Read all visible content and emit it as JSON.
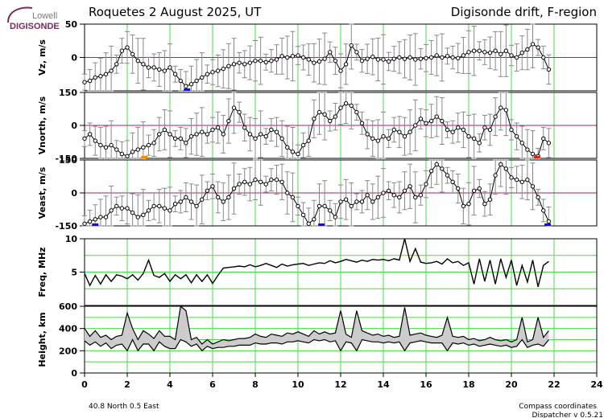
{
  "logo": {
    "top": "Lowell",
    "bottom": "DIGISONDE"
  },
  "header": {
    "left": "Roquetes  2 August 2025, UT",
    "right": "Digisonde drift, F-region"
  },
  "footer": {
    "location": "40.8 North   0.5 East",
    "coords": "Compass coordinates",
    "version": "Dispatcher v 0.5.21"
  },
  "colors": {
    "grid": "#44dd44",
    "zero_line": "#aa2266",
    "error_bar": "#888888",
    "blue_marker": "#1111cc",
    "red_marker": "#dd2200",
    "orange_marker": "#ff8800"
  },
  "chart_data": [
    {
      "type": "scatter",
      "ylabel": "Vz, m/s",
      "ylim": [
        -50,
        50
      ],
      "yticks": [
        "50",
        "0"
      ],
      "x": [
        0,
        0.25,
        0.5,
        0.75,
        1,
        1.25,
        1.5,
        1.75,
        2,
        2.25,
        2.5,
        2.75,
        3,
        3.25,
        3.5,
        3.75,
        4,
        4.25,
        4.5,
        4.75,
        5,
        5.25,
        5.5,
        5.75,
        6,
        6.25,
        6.5,
        6.75,
        7,
        7.25,
        7.5,
        7.75,
        8,
        8.25,
        8.5,
        8.75,
        9,
        9.25,
        9.5,
        9.75,
        10,
        10.25,
        10.5,
        10.75,
        11,
        11.25,
        11.5,
        11.75,
        12,
        12.25,
        12.5,
        12.75,
        13,
        13.25,
        13.5,
        13.75,
        14,
        14.25,
        14.5,
        14.75,
        15,
        15.25,
        15.5,
        15.75,
        16,
        16.25,
        16.5,
        16.75,
        17,
        17.25,
        17.5,
        17.75,
        18,
        18.25,
        18.5,
        18.75,
        19,
        19.25,
        19.5,
        19.75,
        20,
        20.25,
        20.5,
        20.75,
        21,
        21.25,
        21.5,
        21.75
      ],
      "values": [
        -37,
        -35,
        -30,
        -28,
        -25,
        -20,
        -10,
        10,
        15,
        5,
        -5,
        -10,
        -15,
        -15,
        -18,
        -20,
        -15,
        -25,
        -35,
        -43,
        -40,
        -35,
        -30,
        -25,
        -22,
        -20,
        -17,
        -13,
        -10,
        -8,
        -10,
        -8,
        -5,
        -5,
        -7,
        -5,
        -3,
        2,
        0,
        2,
        3,
        0,
        -3,
        -8,
        -6,
        -2,
        8,
        -5,
        -20,
        -10,
        18,
        8,
        -5,
        -2,
        1,
        -3,
        -3,
        -6,
        -2,
        0,
        -2,
        0,
        -3,
        -2,
        -1,
        0,
        3,
        0,
        2,
        0,
        -1,
        3,
        8,
        10,
        10,
        8,
        7,
        10,
        5,
        10,
        3,
        0,
        7,
        12,
        20,
        15,
        0,
        -18
      ],
      "markers": [
        {
          "x": 4.8,
          "color": "blue"
        }
      ]
    },
    {
      "type": "scatter",
      "ylabel": "Vnorth, m/s",
      "ylim": [
        -150,
        150
      ],
      "yticks": [
        "150",
        "0",
        "-150"
      ],
      "x": [
        0,
        0.25,
        0.5,
        0.75,
        1,
        1.25,
        1.5,
        1.75,
        2,
        2.25,
        2.5,
        2.75,
        3,
        3.25,
        3.5,
        3.75,
        4,
        4.25,
        4.5,
        4.75,
        5,
        5.25,
        5.5,
        5.75,
        6,
        6.25,
        6.5,
        6.75,
        7,
        7.25,
        7.5,
        7.75,
        8,
        8.25,
        8.5,
        8.75,
        9,
        9.25,
        9.5,
        9.75,
        10,
        10.25,
        10.5,
        10.75,
        11,
        11.25,
        11.5,
        11.75,
        12,
        12.25,
        12.5,
        12.75,
        13,
        13.25,
        13.5,
        13.75,
        14,
        14.25,
        14.5,
        14.75,
        15,
        15.25,
        15.5,
        15.75,
        16,
        16.25,
        16.5,
        16.75,
        17,
        17.25,
        17.5,
        17.75,
        18,
        18.25,
        18.5,
        18.75,
        19,
        19.25,
        19.5,
        19.75,
        20,
        20.25,
        20.5,
        20.75,
        21,
        21.25,
        21.5,
        21.75
      ],
      "values": [
        -60,
        -40,
        -70,
        -90,
        -100,
        -90,
        -110,
        -130,
        -140,
        -120,
        -110,
        -100,
        -90,
        -80,
        -40,
        -20,
        -40,
        -60,
        -60,
        -80,
        -50,
        -40,
        -30,
        -40,
        -20,
        -10,
        -40,
        20,
        80,
        60,
        -10,
        -40,
        -60,
        -40,
        -50,
        -20,
        -30,
        -60,
        -100,
        -120,
        -130,
        -90,
        -70,
        30,
        60,
        50,
        20,
        40,
        80,
        100,
        90,
        60,
        10,
        -40,
        -60,
        -70,
        -50,
        -60,
        -20,
        -30,
        -50,
        -30,
        0,
        30,
        10,
        20,
        40,
        20,
        -20,
        -30,
        -10,
        -20,
        -50,
        -60,
        -80,
        -10,
        -20,
        40,
        80,
        70,
        -20,
        -50,
        -80,
        -110,
        -130,
        -140,
        -60,
        -80
      ],
      "markers": [
        {
          "x": 2.8,
          "color": "orange"
        },
        {
          "x": 21.2,
          "color": "red"
        }
      ]
    },
    {
      "type": "scatter",
      "ylabel": "Veast, m/s",
      "ylim": [
        -150,
        150
      ],
      "yticks": [
        "150",
        "0",
        "-150"
      ],
      "x": [
        0,
        0.25,
        0.5,
        0.75,
        1,
        1.25,
        1.5,
        1.75,
        2,
        2.25,
        2.5,
        2.75,
        3,
        3.25,
        3.5,
        3.75,
        4,
        4.25,
        4.5,
        4.75,
        5,
        5.25,
        5.5,
        5.75,
        6,
        6.25,
        6.5,
        6.75,
        7,
        7.25,
        7.5,
        7.75,
        8,
        8.25,
        8.5,
        8.75,
        9,
        9.25,
        9.5,
        9.75,
        10,
        10.25,
        10.5,
        10.75,
        11,
        11.25,
        11.5,
        11.75,
        12,
        12.25,
        12.5,
        12.75,
        13,
        13.25,
        13.5,
        13.75,
        14,
        14.25,
        14.5,
        14.75,
        15,
        15.25,
        15.5,
        15.75,
        16,
        16.25,
        16.5,
        16.75,
        17,
        17.25,
        17.5,
        17.75,
        18,
        18.25,
        18.5,
        18.75,
        19,
        19.25,
        19.5,
        19.75,
        20,
        20.25,
        20.5,
        20.75,
        21,
        21.25,
        21.5,
        21.75
      ],
      "values": [
        -140,
        -130,
        -120,
        -110,
        -110,
        -80,
        -60,
        -70,
        -70,
        -90,
        -110,
        -100,
        -80,
        -60,
        -60,
        -70,
        -80,
        -50,
        -40,
        -20,
        -40,
        -60,
        -30,
        10,
        30,
        -20,
        -40,
        -20,
        20,
        40,
        50,
        40,
        60,
        50,
        40,
        60,
        60,
        50,
        0,
        -20,
        -60,
        -100,
        -140,
        -120,
        -60,
        -60,
        -80,
        -110,
        -40,
        -30,
        -60,
        -40,
        -40,
        -10,
        -40,
        -20,
        0,
        10,
        -10,
        -20,
        10,
        30,
        -20,
        -10,
        40,
        100,
        130,
        110,
        80,
        50,
        20,
        -60,
        -50,
        10,
        20,
        -50,
        -30,
        80,
        130,
        110,
        70,
        60,
        50,
        60,
        30,
        -20,
        -80,
        -130
      ],
      "markers": [
        {
          "x": 0.5,
          "color": "blue"
        },
        {
          "x": 11.1,
          "color": "blue"
        },
        {
          "x": 21.7,
          "color": "blue"
        }
      ]
    },
    {
      "type": "line",
      "ylabel": "Freq, MHz",
      "ylim": [
        0,
        10
      ],
      "yticks": [
        "10",
        "5"
      ],
      "x": [
        0,
        0.25,
        0.5,
        0.75,
        1,
        1.25,
        1.5,
        1.75,
        2,
        2.25,
        2.5,
        2.75,
        3,
        3.25,
        3.5,
        3.75,
        4,
        4.25,
        4.5,
        4.75,
        5,
        5.25,
        5.5,
        5.75,
        6,
        6.25,
        6.5,
        6.75,
        7,
        7.25,
        7.5,
        7.75,
        8,
        8.25,
        8.5,
        8.75,
        9,
        9.25,
        9.5,
        9.75,
        10,
        10.25,
        10.5,
        10.75,
        11,
        11.25,
        11.5,
        11.75,
        12,
        12.25,
        12.5,
        12.75,
        13,
        13.25,
        13.5,
        13.75,
        14,
        14.25,
        14.5,
        14.75,
        15,
        15.25,
        15.5,
        15.75,
        16,
        16.25,
        16.5,
        16.75,
        17,
        17.25,
        17.5,
        17.75,
        18,
        18.25,
        18.5,
        18.75,
        19,
        19.25,
        19.5,
        19.75,
        20,
        20.25,
        20.5,
        20.75,
        21,
        21.25,
        21.5,
        21.75
      ],
      "values": [
        4.8,
        3.0,
        4.5,
        3.2,
        4.6,
        3.6,
        4.6,
        4.4,
        4.0,
        4.6,
        3.8,
        4.8,
        6.8,
        4.5,
        4.2,
        4.8,
        3.6,
        4.6,
        4.0,
        4.6,
        3.4,
        4.6,
        3.6,
        4.6,
        3.3,
        4.5,
        5.6,
        5.7,
        5.8,
        5.9,
        5.8,
        6.1,
        5.8,
        6.0,
        6.3,
        6.0,
        5.7,
        6.2,
        5.9,
        6.1,
        6.2,
        6.3,
        6.0,
        6.2,
        6.4,
        6.3,
        6.7,
        6.4,
        6.6,
        6.9,
        6.7,
        6.5,
        6.8,
        6.6,
        6.9,
        6.8,
        6.9,
        6.7,
        7.0,
        6.8,
        10.0,
        6.6,
        8.5,
        6.5,
        6.3,
        6.4,
        6.6,
        6.2,
        7.0,
        6.4,
        6.6,
        6.0,
        6.4,
        3.2,
        7.0,
        3.6,
        6.8,
        3.2,
        7.0,
        4.2,
        6.8,
        3.0,
        6.0,
        3.5,
        6.8,
        2.8,
        6.0,
        6.6
      ]
    },
    {
      "type": "area",
      "ylabel": "Height, km",
      "ylim": [
        0,
        600
      ],
      "yticks": [
        "600",
        "400",
        "200",
        "0"
      ],
      "x": [
        0,
        0.25,
        0.5,
        0.75,
        1,
        1.25,
        1.5,
        1.75,
        2,
        2.25,
        2.5,
        2.75,
        3,
        3.25,
        3.5,
        3.75,
        4,
        4.25,
        4.5,
        4.75,
        5,
        5.25,
        5.5,
        5.75,
        6,
        6.25,
        6.5,
        6.75,
        7,
        7.25,
        7.5,
        7.75,
        8,
        8.25,
        8.5,
        8.75,
        9,
        9.25,
        9.5,
        9.75,
        10,
        10.25,
        10.5,
        10.75,
        11,
        11.25,
        11.5,
        11.75,
        12,
        12.25,
        12.5,
        12.75,
        13,
        13.25,
        13.5,
        13.75,
        14,
        14.25,
        14.5,
        14.75,
        15,
        15.25,
        15.5,
        15.75,
        16,
        16.25,
        16.5,
        16.75,
        17,
        17.25,
        17.5,
        17.75,
        18,
        18.25,
        18.5,
        18.75,
        19,
        19.25,
        19.5,
        19.75,
        20,
        20.25,
        20.5,
        20.75,
        21,
        21.25,
        21.5,
        21.75
      ],
      "upper": [
        400,
        330,
        380,
        320,
        340,
        300,
        330,
        340,
        540,
        400,
        300,
        380,
        350,
        310,
        380,
        330,
        330,
        300,
        600,
        560,
        300,
        320,
        260,
        300,
        260,
        280,
        300,
        290,
        300,
        310,
        310,
        320,
        350,
        330,
        320,
        350,
        340,
        330,
        360,
        350,
        370,
        350,
        330,
        380,
        350,
        370,
        350,
        360,
        560,
        350,
        320,
        560,
        380,
        360,
        340,
        350,
        330,
        340,
        320,
        330,
        590,
        340,
        350,
        360,
        340,
        330,
        320,
        340,
        500,
        330,
        320,
        330,
        300,
        310,
        290,
        300,
        320,
        300,
        290,
        300,
        280,
        300,
        500,
        280,
        300,
        500,
        320,
        380
      ],
      "lower": [
        290,
        250,
        280,
        240,
        270,
        220,
        250,
        260,
        200,
        300,
        200,
        260,
        260,
        200,
        280,
        240,
        220,
        220,
        300,
        280,
        240,
        260,
        200,
        240,
        220,
        230,
        230,
        240,
        240,
        250,
        250,
        250,
        270,
        260,
        260,
        270,
        270,
        260,
        280,
        280,
        290,
        280,
        270,
        300,
        290,
        300,
        280,
        290,
        200,
        280,
        270,
        200,
        300,
        290,
        280,
        280,
        270,
        280,
        270,
        280,
        200,
        270,
        280,
        290,
        280,
        270,
        270,
        270,
        200,
        270,
        260,
        270,
        250,
        260,
        240,
        250,
        260,
        250,
        240,
        250,
        230,
        240,
        300,
        230,
        250,
        260,
        240,
        300
      ]
    }
  ],
  "x_axis": {
    "range": [
      0,
      24
    ],
    "ticks": [
      "0",
      "2",
      "4",
      "6",
      "8",
      "10",
      "12",
      "14",
      "16",
      "18",
      "20",
      "22",
      "24"
    ]
  }
}
